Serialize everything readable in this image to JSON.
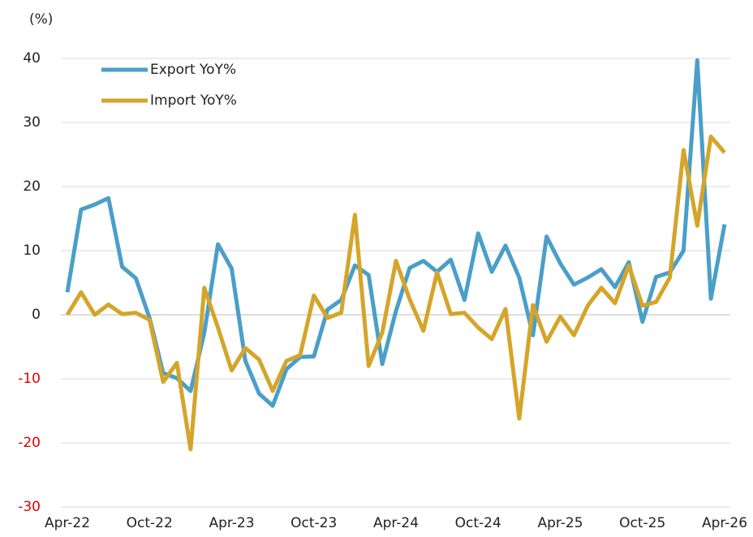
{
  "chart_data": {
    "type": "line",
    "y_axis_label": "(%)",
    "categories": [
      "Apr-22",
      null,
      null,
      null,
      null,
      null,
      "Oct-22",
      null,
      null,
      null,
      null,
      null,
      "Apr-23",
      null,
      null,
      null,
      null,
      null,
      "Oct-23",
      null,
      null,
      null,
      null,
      null,
      "Apr-24",
      null,
      null,
      null,
      null,
      null,
      "Oct-24",
      null,
      null,
      null,
      null,
      null,
      "Apr-25",
      null,
      null,
      null,
      null,
      null,
      "Oct-25",
      null,
      null,
      null,
      null,
      null,
      "Apr-26"
    ],
    "series": [
      {
        "name": "Export YoY%",
        "color": "#4a9fc8",
        "values": [
          3.5,
          16.4,
          17.2,
          18.2,
          7.5,
          5.7,
          -0.5,
          -9.1,
          -9.9,
          -11.9,
          -2.8,
          11.0,
          7.2,
          -7.2,
          -12.3,
          -14.2,
          -8.5,
          -6.6,
          -6.5,
          0.8,
          2.3,
          7.7,
          6.2,
          -7.7,
          0.6,
          7.3,
          8.4,
          6.7,
          8.6,
          2.3,
          12.7,
          6.7,
          10.8,
          5.8,
          -3.2,
          12.2,
          8.0,
          4.7,
          5.8,
          7.1,
          4.3,
          8.2,
          -1.1,
          5.9,
          6.6,
          10.0,
          39.7,
          2.5,
          14.1
        ]
      },
      {
        "name": "Import YoY%",
        "color": "#d4a52a",
        "values": [
          0,
          3.5,
          0,
          1.6,
          0.1,
          0.3,
          -0.8,
          -10.5,
          -7.5,
          -21.0,
          4.2,
          -2.0,
          -8.7,
          -5.2,
          -7.0,
          -11.9,
          -7.2,
          -6.3,
          3.0,
          -0.5,
          0.3,
          15.6,
          -8.0,
          -2.8,
          8.4,
          2.4,
          -2.5,
          6.6,
          0.1,
          0.3,
          -2.0,
          -3.8,
          0.9,
          -16.2,
          1.5,
          -4.2,
          -0.3,
          -3.2,
          1.4,
          4.2,
          1.8,
          7.7,
          1.4,
          2.0,
          5.8,
          25.7,
          13.9,
          27.8,
          25.3
        ]
      }
    ],
    "ylim": [
      -30,
      40
    ],
    "yticks": [
      -30,
      -20,
      -10,
      0,
      10,
      20,
      30,
      40
    ],
    "grid": true,
    "legend": "upper left",
    "negative_tick_label_color": "#e00000"
  }
}
